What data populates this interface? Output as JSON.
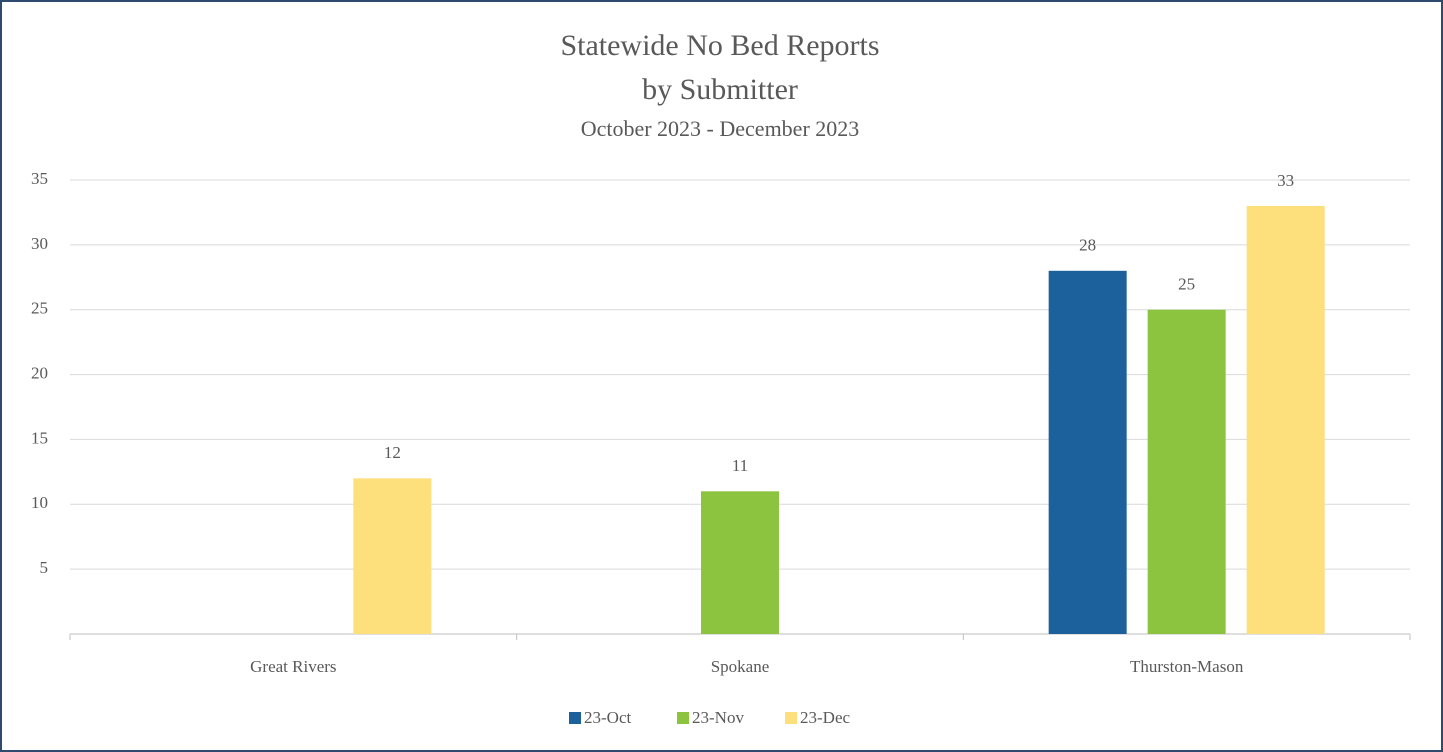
{
  "chart_data": {
    "type": "bar",
    "title": [
      "Statewide No Bed Reports",
      "by Submitter"
    ],
    "subtitle": "October 2023 - December 2023",
    "categories": [
      "Great Rivers",
      "Spokane",
      "Thurston-Mason"
    ],
    "series": [
      {
        "name": "23-Oct",
        "color": "#1c619c",
        "values": [
          null,
          null,
          28
        ]
      },
      {
        "name": "23-Nov",
        "color": "#8cc43f",
        "values": [
          null,
          11,
          25
        ]
      },
      {
        "name": "23-Dec",
        "color": "#fde07c",
        "values": [
          12,
          null,
          33
        ]
      }
    ],
    "ylim": [
      0,
      35
    ],
    "yticks": [
      5,
      10,
      15,
      20,
      25,
      30,
      35
    ],
    "grid": true,
    "legend": "bottom"
  }
}
